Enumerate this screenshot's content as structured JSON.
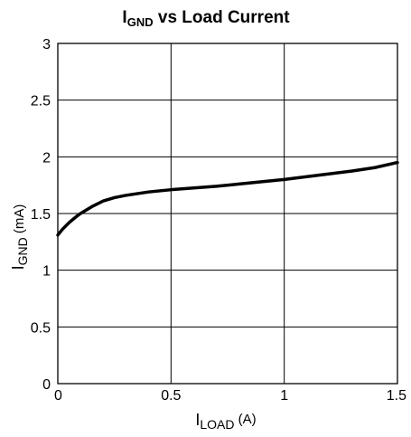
{
  "chart_data": {
    "type": "line",
    "title": {
      "main": "I",
      "sub": "GND",
      "rest": " vs Load Current"
    },
    "xlabel": {
      "main": "I",
      "sub": "LOAD",
      "unit": " (A)"
    },
    "ylabel": {
      "main": "I",
      "sub": "GND",
      "unit": " (mA)"
    },
    "xlim": [
      0,
      1.5
    ],
    "ylim": [
      0,
      3
    ],
    "xticks": [
      0,
      0.5,
      1,
      1.5
    ],
    "yticks": [
      0,
      0.5,
      1,
      1.5,
      2,
      2.5,
      3
    ],
    "xtick_labels": [
      "0",
      "0.5",
      "1",
      "1.5"
    ],
    "ytick_labels": [
      "0",
      "0.5",
      "1",
      "1.5",
      "2",
      "2.5",
      "3"
    ],
    "grid": true,
    "series": [
      {
        "color": "#000000",
        "x": [
          0,
          0.02,
          0.05,
          0.08,
          0.1,
          0.15,
          0.2,
          0.25,
          0.3,
          0.4,
          0.5,
          0.6,
          0.7,
          0.8,
          0.9,
          1.0,
          1.1,
          1.2,
          1.3,
          1.4,
          1.5
        ],
        "y": [
          1.31,
          1.36,
          1.42,
          1.47,
          1.5,
          1.56,
          1.61,
          1.64,
          1.66,
          1.69,
          1.71,
          1.725,
          1.74,
          1.76,
          1.78,
          1.8,
          1.825,
          1.85,
          1.875,
          1.905,
          1.95
        ]
      }
    ]
  }
}
